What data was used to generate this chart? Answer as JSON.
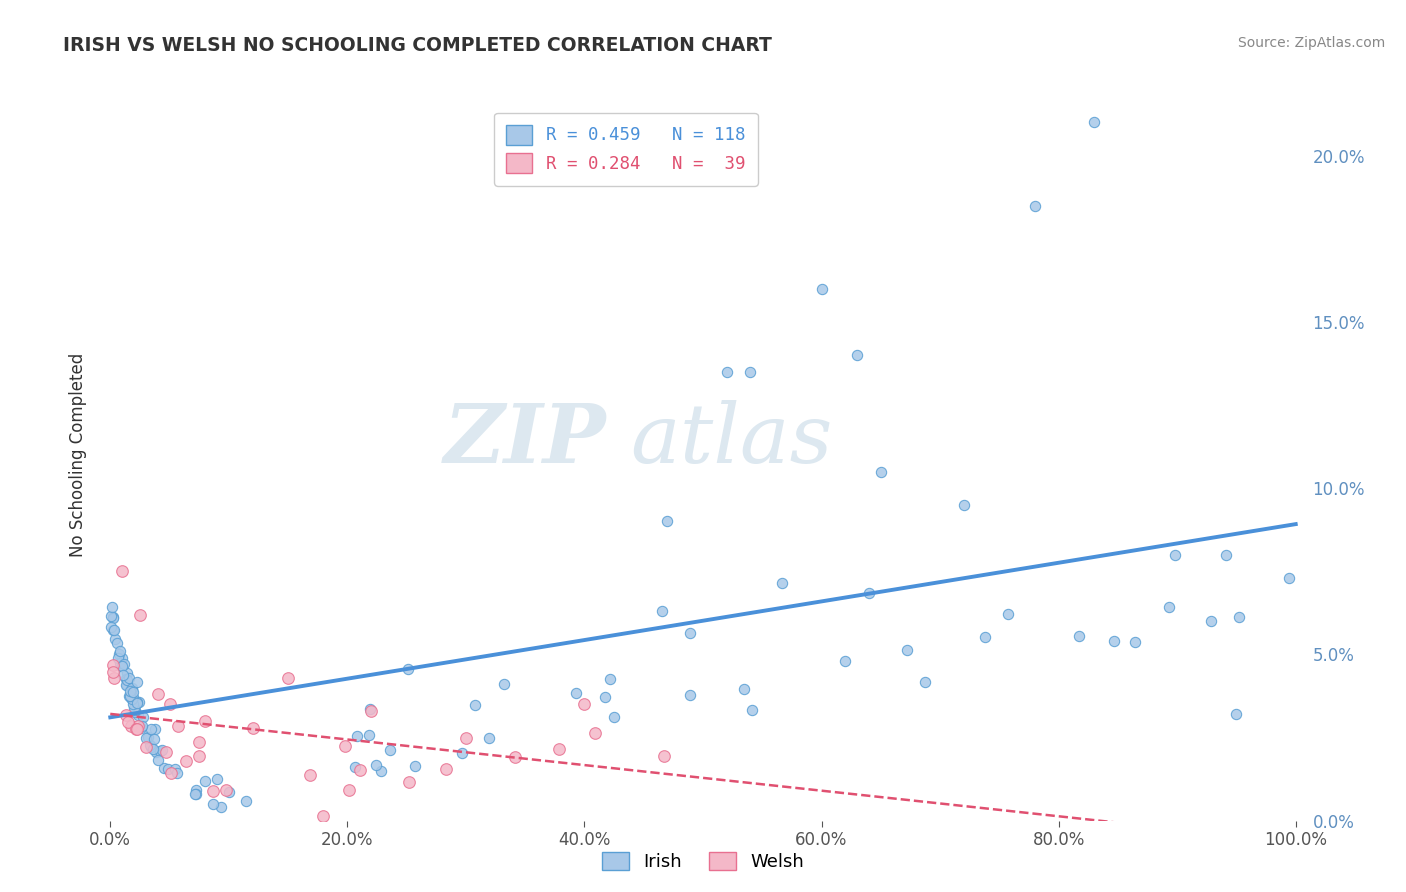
{
  "title": "IRISH VS WELSH NO SCHOOLING COMPLETED CORRELATION CHART",
  "source": "Source: ZipAtlas.com",
  "ylabel": "No Schooling Completed",
  "watermark_zip": "ZIP",
  "watermark_atlas": "atlas",
  "irish_R": 0.459,
  "irish_N": 118,
  "welsh_R": 0.284,
  "welsh_N": 39,
  "xlim": [
    -1.0,
    101.0
  ],
  "ylim": [
    0.0,
    22.0
  ],
  "yticks": [
    0.0,
    5.0,
    10.0,
    15.0,
    20.0
  ],
  "xticks": [
    0.0,
    20.0,
    40.0,
    60.0,
    80.0,
    100.0
  ],
  "irish_color": "#a8c8e8",
  "irish_edge_color": "#5a9fd4",
  "welsh_color": "#f4b8c8",
  "welsh_edge_color": "#e87090",
  "irish_line_color": "#4a90d9",
  "welsh_line_color": "#e05070",
  "background_color": "#ffffff",
  "grid_color": "#cccccc",
  "title_color": "#333333",
  "axis_label_color": "#6090c0",
  "tick_color": "#555555",
  "legend_color_irish": "#a8c8e8",
  "legend_edge_irish": "#5a9fd4",
  "legend_color_welsh": "#f4b8c8",
  "legend_edge_welsh": "#e87090"
}
